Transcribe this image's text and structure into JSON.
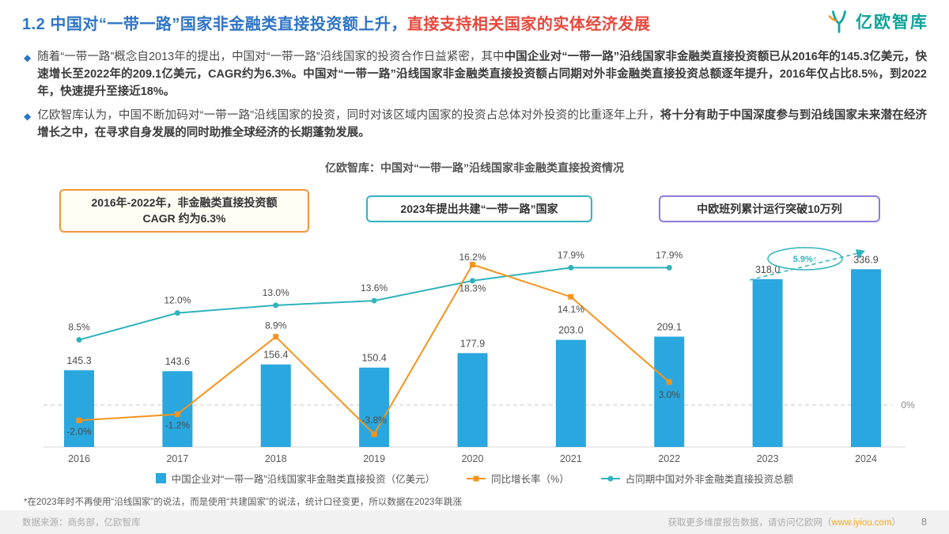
{
  "bullet_marker": "◆",
  "colors": {
    "accent_blue": "#2E74C6",
    "accent_red": "#E8483C",
    "brand_teal": "#0FA29A"
  },
  "header": {
    "title_blue": "1.2 中国对“一带一路”国家非金融类直接投资额上升，",
    "title_red": "直接支持相关国家的实体经济发展",
    "logo_text": "亿欧智库"
  },
  "bullets": [
    {
      "segments": [
        {
          "t": "随着“一带一路”概念自2013年的提出，中国对“一带一路”沿线国家的投资合作日益紧密，其中",
          "b": false
        },
        {
          "t": "中国企业对“一带一路”沿线国家非金融类直接投资额已从2016年的145.3亿美元，快速增长至2022年的209.1亿美元，CAGR约为6.3%。中国对“一带一路”沿线国家非金融类直接投资额占同期对外非金融类直接投资总额逐年提升，2016年仅占比8.5%，到2022年，快速提升至接近18%。",
          "b": true
        }
      ]
    },
    {
      "segments": [
        {
          "t": "亿欧智库认为，中国不断加码对“一带一路”沿线国家的投资，同时对该区域内国家的投资占总体对外投资的比重逐年上升，",
          "b": false
        },
        {
          "t": "将十分有助于中国深度参与到沿线国家未来潜在经济增长之中，在寻求自身发展的同时助推全球经济的长期蓬勃发展。",
          "b": true
        }
      ]
    }
  ],
  "chart_title": "亿欧智库：中国对“一带一路”沿线国家非金融类直接投资情况",
  "callouts": [
    {
      "lines": [
        "2016年-2022年，非金融类直接投资额",
        "CAGR 约为6.3%"
      ],
      "border": "#F0953F",
      "bg": "#FFFDF4"
    },
    {
      "lines": [
        "2023年提出共建“一带一路”国家"
      ],
      "border": "#33B1C2",
      "bg": "#FFFFFF"
    },
    {
      "lines": [
        "中欧班列累计运行突破10万列"
      ],
      "border": "#8F7BD8",
      "bg": "#FFFFFF"
    }
  ],
  "chart_data": {
    "type": "bar+line",
    "categories": [
      "2016",
      "2017",
      "2018",
      "2019",
      "2020",
      "2021",
      "2022",
      "2023",
      "2024"
    ],
    "series": [
      {
        "name": "中国企业对“一带一路”沿线国家非金融类直接投资（亿美元）",
        "type": "bar",
        "color": "#2AA7DE",
        "values": [
          145.3,
          143.6,
          156.4,
          150.4,
          177.9,
          203.0,
          209.1,
          318.0,
          336.9
        ]
      },
      {
        "name": "同比增长率（%）",
        "type": "line",
        "color": "#F5941F",
        "values": [
          -2.0,
          -1.2,
          8.9,
          -3.8,
          18.3,
          14.1,
          3.0,
          null,
          null
        ]
      },
      {
        "name": "占同期中国对外非金融类直接投资总额",
        "type": "line",
        "color": "#2FB3BC",
        "values": [
          8.5,
          12.0,
          13.0,
          13.6,
          16.2,
          17.9,
          17.9,
          null,
          null
        ]
      }
    ],
    "zero_line_label": "0%",
    "annotation": "5.9%↑",
    "legend_position": "bottom",
    "grid": false
  },
  "footnote": "*在2023年时不再使用“沿线国家”的说法，而是使用“共建国家”的说法，统计口径变更，所以数据在2023年跳涨",
  "footer": {
    "source": "数据来源：商务部，亿欧智库",
    "cta_prefix": "获取更多维度报告数据，请访问亿欧网（",
    "cta_link": "www.iyiou.com",
    "cta_suffix": "）",
    "page": "8"
  }
}
